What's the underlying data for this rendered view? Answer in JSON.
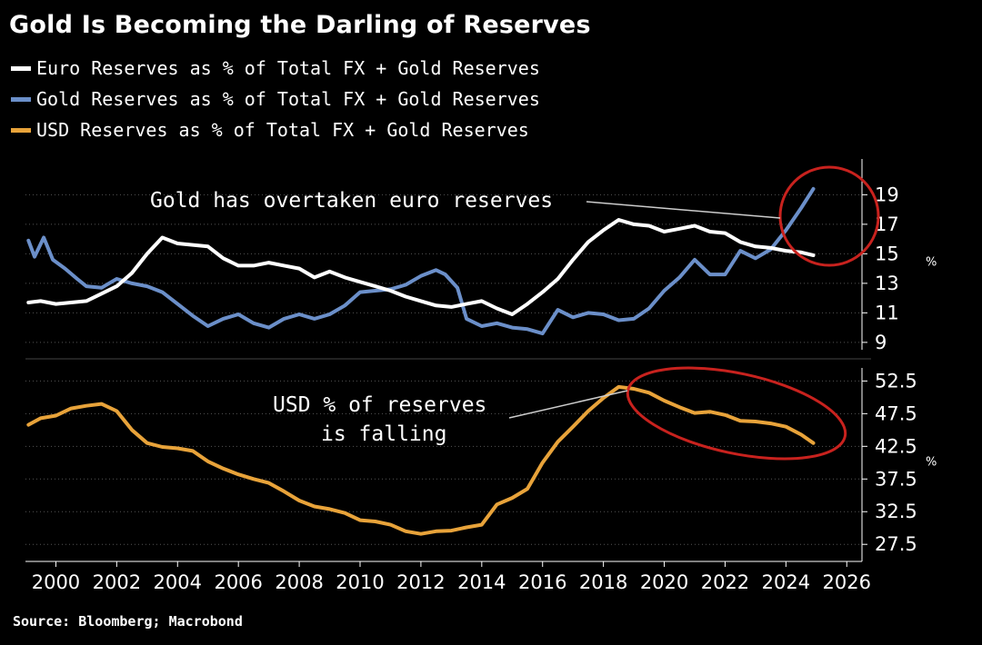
{
  "title": "Gold Is Becoming the Darling of Reserves",
  "source": "Source: Bloomberg; Macrobond",
  "colors": {
    "euro": "#ffffff",
    "gold": "#6b8fc9",
    "usd": "#e8a33a",
    "highlight": "#c8221e",
    "grid": "#555555"
  },
  "legend": [
    {
      "label": "Euro Reserves as % of Total FX + Gold Reserves",
      "color": "#ffffff"
    },
    {
      "label": "Gold Reserves as % of Total FX + Gold Reserves",
      "color": "#6b8fc9"
    },
    {
      "label": "USD Reserves as % of Total FX + Gold Reserves",
      "color": "#e8a33a"
    }
  ],
  "annotations": {
    "gold": "Gold has overtaken euro reserves",
    "usd_line1": "USD % of reserves",
    "usd_line2": "is falling"
  },
  "chart_data": [
    {
      "type": "line",
      "panel": "top",
      "ylabel": "%",
      "ylim": [
        8.5,
        20.5
      ],
      "yticks": [
        "9",
        "11",
        "13",
        "15",
        "17",
        "19"
      ],
      "xlim": [
        1999,
        2026.5
      ],
      "xticks": [
        "2000",
        "2002",
        "2004",
        "2006",
        "2008",
        "2010",
        "2012",
        "2014",
        "2016",
        "2018",
        "2020",
        "2022",
        "2024",
        "2026"
      ],
      "grid": true,
      "series": [
        {
          "name": "Euro Reserves as % of Total FX + Gold Reserves",
          "x": [
            1999.1,
            1999.5,
            2000.0,
            2000.5,
            2001.0,
            2001.5,
            2002.0,
            2002.5,
            2003.0,
            2003.5,
            2004.0,
            2004.5,
            2005.0,
            2005.5,
            2006.0,
            2006.5,
            2007.0,
            2007.5,
            2008.0,
            2008.5,
            2009.0,
            2009.5,
            2010.0,
            2010.5,
            2011.0,
            2011.5,
            2012.0,
            2012.5,
            2013.0,
            2013.5,
            2014.0,
            2014.5,
            2015.0,
            2015.5,
            2016.0,
            2016.5,
            2017.0,
            2017.5,
            2018.0,
            2018.5,
            2019.0,
            2019.5,
            2020.0,
            2020.5,
            2021.0,
            2021.5,
            2022.0,
            2022.5,
            2023.0,
            2023.5,
            2024.0,
            2024.5,
            2024.9
          ],
          "values": [
            11.7,
            11.8,
            11.6,
            11.7,
            11.8,
            12.3,
            12.8,
            13.7,
            15.0,
            16.1,
            15.7,
            15.6,
            15.5,
            14.7,
            14.2,
            14.2,
            14.4,
            14.2,
            14.0,
            13.4,
            13.8,
            13.4,
            13.1,
            12.8,
            12.5,
            12.1,
            11.8,
            11.5,
            11.4,
            11.6,
            11.8,
            11.3,
            10.9,
            11.6,
            12.4,
            13.3,
            14.6,
            15.8,
            16.6,
            17.3,
            17.0,
            16.9,
            16.5,
            16.7,
            16.9,
            16.5,
            16.4,
            15.8,
            15.5,
            15.4,
            15.2,
            15.1,
            14.9
          ]
        },
        {
          "name": "Gold Reserves as % of Total FX + Gold Reserves",
          "x": [
            1999.1,
            1999.3,
            1999.6,
            1999.9,
            2000.3,
            2000.7,
            2001.0,
            2001.5,
            2002.0,
            2002.5,
            2003.0,
            2003.5,
            2004.0,
            2004.5,
            2005.0,
            2005.5,
            2006.0,
            2006.5,
            2007.0,
            2007.5,
            2008.0,
            2008.5,
            2009.0,
            2009.5,
            2010.0,
            2010.5,
            2011.0,
            2011.5,
            2012.0,
            2012.5,
            2012.8,
            2013.2,
            2013.5,
            2014.0,
            2014.5,
            2015.0,
            2015.5,
            2016.0,
            2016.5,
            2017.0,
            2017.5,
            2018.0,
            2018.5,
            2019.0,
            2019.5,
            2020.0,
            2020.5,
            2021.0,
            2021.5,
            2022.0,
            2022.5,
            2023.0,
            2023.5,
            2024.0,
            2024.5,
            2024.9
          ],
          "values": [
            15.9,
            14.8,
            16.1,
            14.6,
            14.0,
            13.3,
            12.8,
            12.7,
            13.3,
            13.0,
            12.8,
            12.4,
            11.6,
            10.8,
            10.1,
            10.6,
            10.9,
            10.3,
            10.0,
            10.6,
            10.9,
            10.6,
            10.9,
            11.5,
            12.4,
            12.5,
            12.6,
            12.9,
            13.5,
            13.9,
            13.6,
            12.7,
            10.6,
            10.1,
            10.3,
            10.0,
            9.9,
            9.6,
            11.2,
            10.7,
            11.0,
            10.9,
            10.5,
            10.6,
            11.3,
            12.5,
            13.4,
            14.6,
            13.6,
            13.6,
            15.2,
            14.7,
            15.3,
            16.6,
            18.1,
            19.4
          ]
        }
      ]
    },
    {
      "type": "line",
      "panel": "bottom",
      "ylabel": "%",
      "ylim": [
        26,
        54.5
      ],
      "yticks": [
        "27.5",
        "32.5",
        "37.5",
        "42.5",
        "47.5",
        "52.5"
      ],
      "xlim": [
        1999,
        2026.5
      ],
      "grid": true,
      "series": [
        {
          "name": "USD Reserves as % of Total FX + Gold Reserves",
          "x": [
            1999.1,
            1999.5,
            2000.0,
            2000.5,
            2001.0,
            2001.5,
            2002.0,
            2002.5,
            2003.0,
            2003.5,
            2004.0,
            2004.5,
            2005.0,
            2005.5,
            2006.0,
            2006.5,
            2007.0,
            2007.5,
            2008.0,
            2008.5,
            2009.0,
            2009.5,
            2010.0,
            2010.5,
            2011.0,
            2011.5,
            2012.0,
            2012.5,
            2013.0,
            2013.5,
            2014.0,
            2014.5,
            2015.0,
            2015.5,
            2016.0,
            2016.5,
            2017.0,
            2017.5,
            2018.0,
            2018.5,
            2019.0,
            2019.5,
            2020.0,
            2020.5,
            2021.0,
            2021.5,
            2022.0,
            2022.5,
            2023.0,
            2023.5,
            2024.0,
            2024.5,
            2024.9
          ],
          "values": [
            45.8,
            46.8,
            47.2,
            48.3,
            48.7,
            49.0,
            47.9,
            45.0,
            43.0,
            42.4,
            42.2,
            41.8,
            40.2,
            39.1,
            38.2,
            37.5,
            36.9,
            35.6,
            34.2,
            33.3,
            32.9,
            32.3,
            31.2,
            31.0,
            30.5,
            29.5,
            29.1,
            29.5,
            29.6,
            30.1,
            30.5,
            33.6,
            34.6,
            36.0,
            40.0,
            43.2,
            45.5,
            47.9,
            49.9,
            51.6,
            51.3,
            50.7,
            49.5,
            48.5,
            47.6,
            47.8,
            47.3,
            46.4,
            46.3,
            46.0,
            45.5,
            44.3,
            43.0
          ]
        }
      ]
    }
  ]
}
